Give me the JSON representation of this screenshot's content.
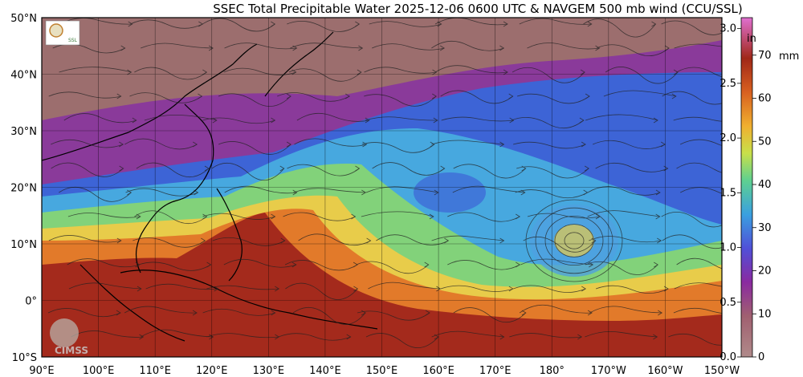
{
  "title": "SSEC Total Precipitable Water  2025-12-06 0600 UTC & NAVGEM 500 mb wind (CCU/SSL)",
  "lat_labels": [
    "50°N",
    "40°N",
    "30°N",
    "20°N",
    "10°N",
    "0°",
    "10°S"
  ],
  "lon_labels": [
    "90°E",
    "100°E",
    "110°E",
    "120°E",
    "130°E",
    "140°E",
    "150°E",
    "160°E",
    "170°E",
    "180°",
    "170°W",
    "160°W",
    "150°W"
  ],
  "colorbar": {
    "inch_unit": "in",
    "mm_unit": "mm",
    "inch_ticks": [
      "3.0",
      "2.5",
      "2.0",
      "1.5",
      "1.0",
      "0.5",
      "0.0"
    ],
    "mm_ticks": [
      "70",
      "60",
      "50",
      "40",
      "30",
      "20",
      "10",
      "0"
    ]
  },
  "watermark": "CIMSS",
  "colors": {
    "dry": "#9a6b6b",
    "purple": "#8a3a9a",
    "blue": "#3d6fd9",
    "cyan": "#4fb4dc",
    "green": "#7fd07a",
    "yellow": "#e8d04a",
    "orange": "#e27a2a",
    "wet": "#9c2a1a"
  }
}
